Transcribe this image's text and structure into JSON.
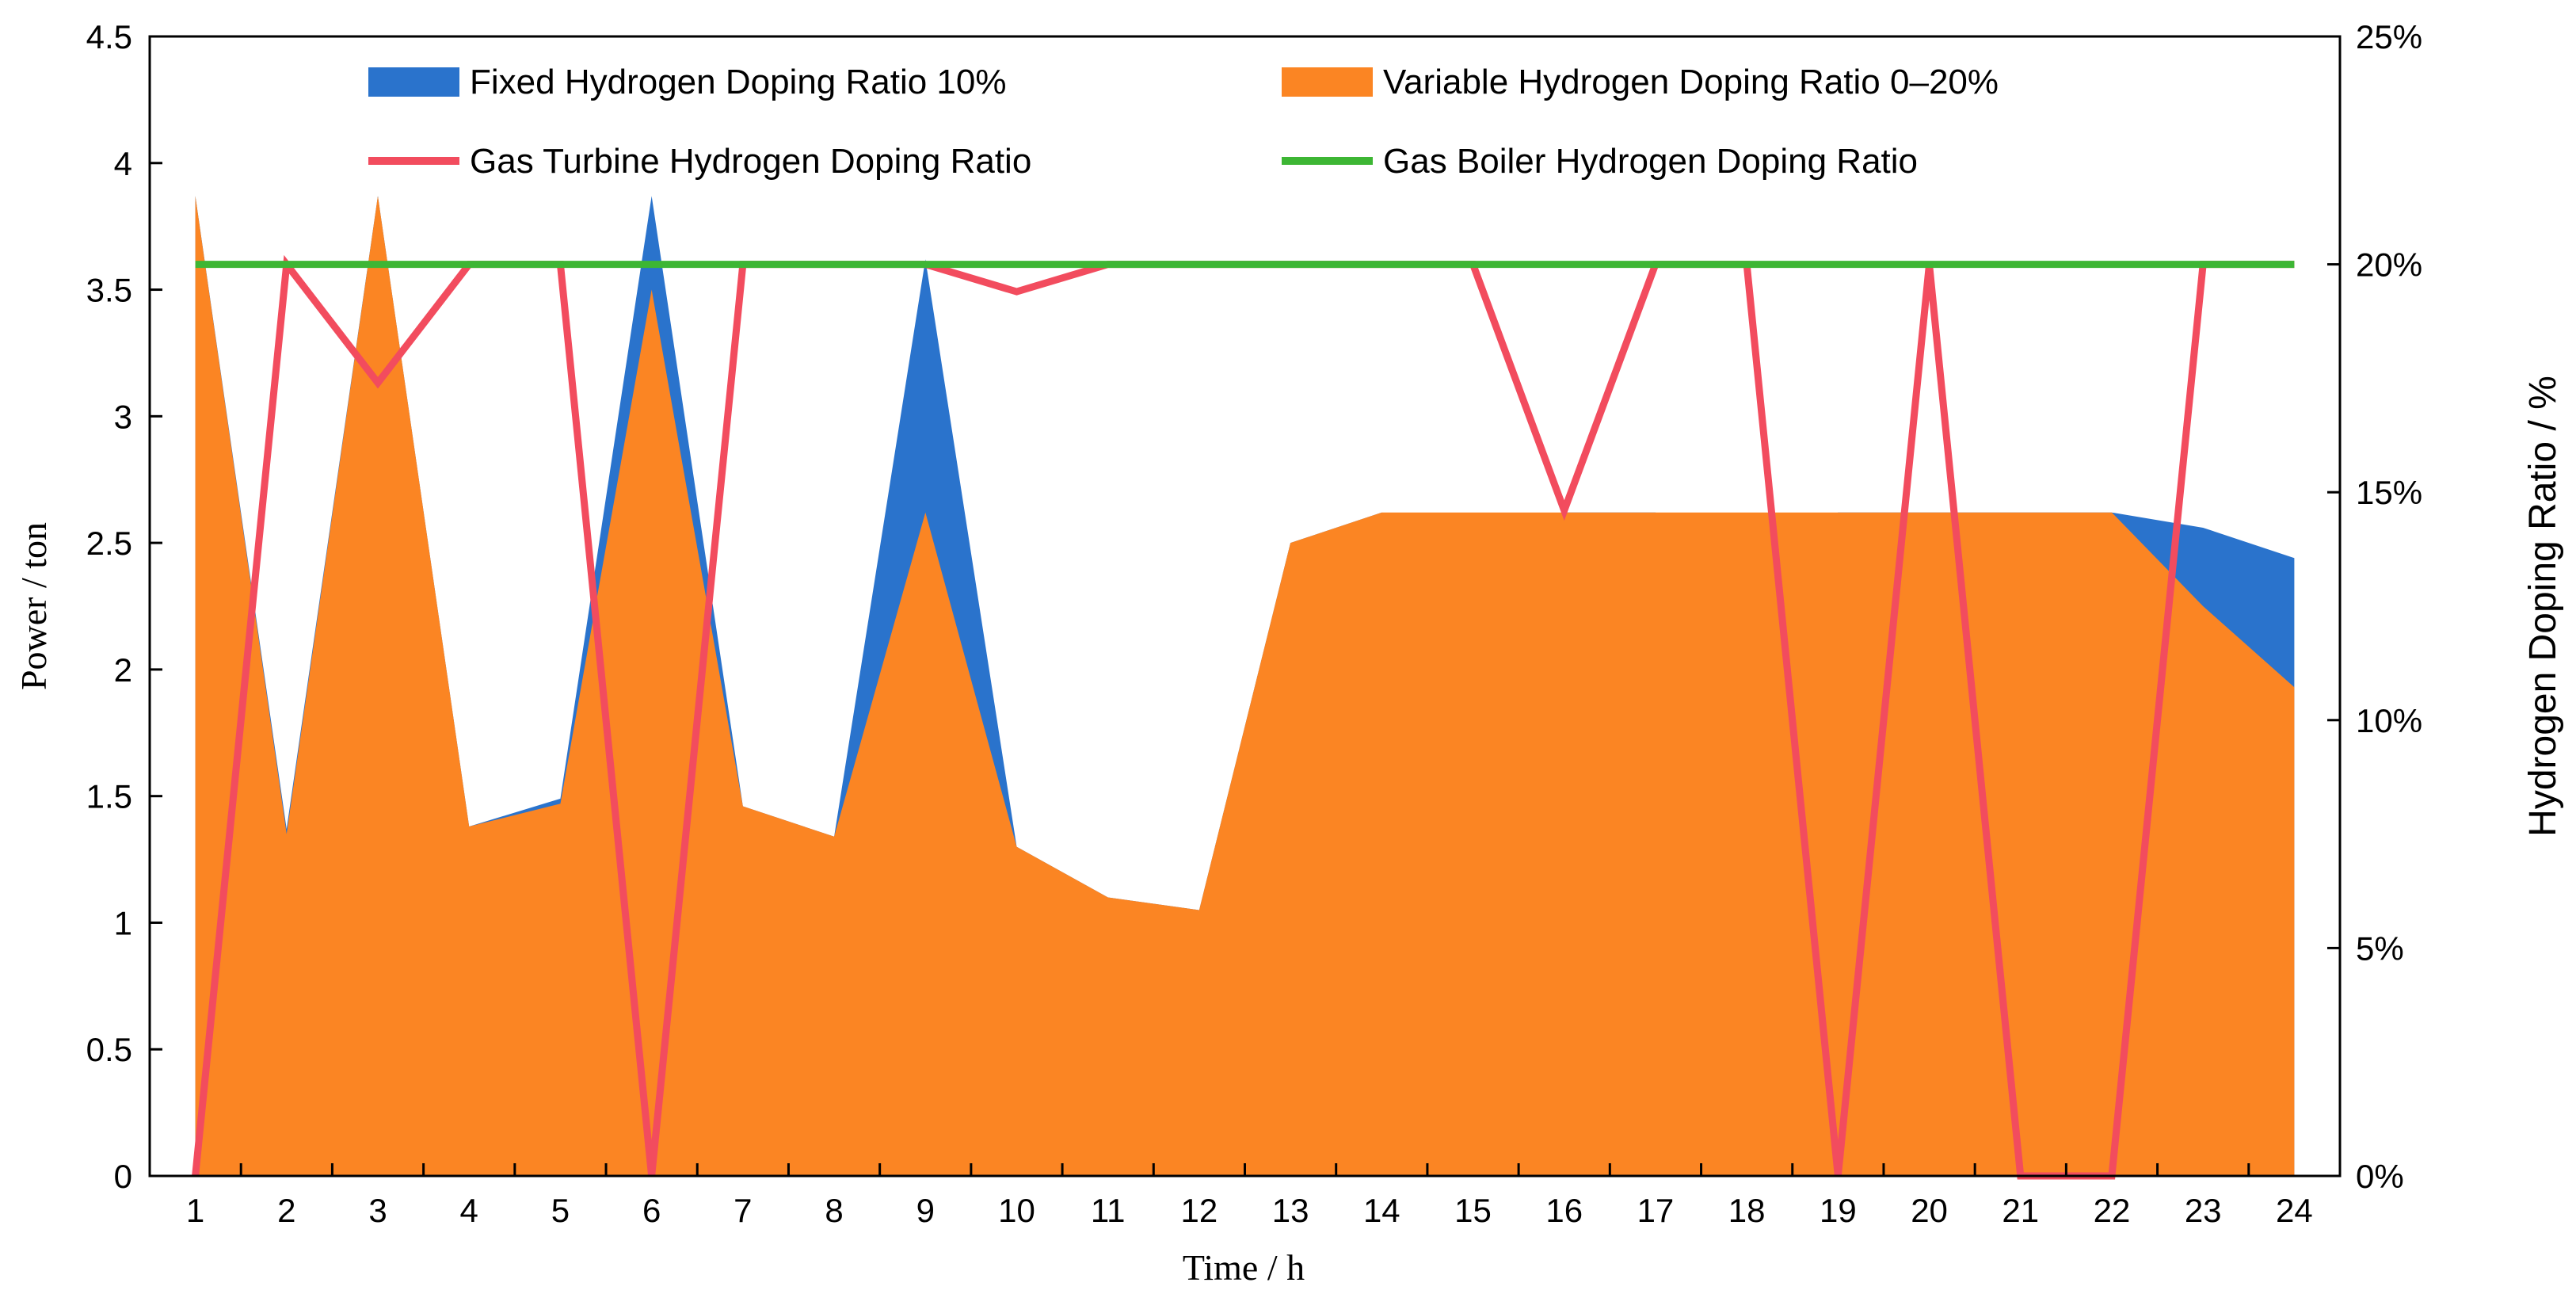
{
  "chart_data": {
    "type": "area",
    "title": "",
    "xlabel": "Time / h",
    "ylabel": "Power / ton",
    "y2label": "Hydrogen Doping Ratio / %",
    "x": [
      1,
      2,
      3,
      4,
      5,
      6,
      7,
      8,
      9,
      10,
      11,
      12,
      13,
      14,
      15,
      16,
      17,
      18,
      19,
      20,
      21,
      22,
      23,
      24
    ],
    "x_tick_labels": [
      "1",
      "2",
      "3",
      "4",
      "5",
      "6",
      "7",
      "8",
      "9",
      "10",
      "11",
      "12",
      "13",
      "14",
      "15",
      "16",
      "17",
      "18",
      "19",
      "20",
      "21",
      "22",
      "23",
      "24"
    ],
    "xlim": [
      0.5,
      24.5
    ],
    "ylim": [
      0,
      4.5
    ],
    "y_ticks": [
      0,
      0.5,
      1,
      1.5,
      2,
      2.5,
      3,
      3.5,
      4,
      4.5
    ],
    "y_tick_labels": [
      "0",
      "0.5",
      "1",
      "1.5",
      "2",
      "2.5",
      "3",
      "3.5",
      "4",
      "4.5"
    ],
    "y2lim": [
      0,
      25
    ],
    "y2_ticks": [
      0,
      5,
      10,
      15,
      20,
      25
    ],
    "y2_tick_labels": [
      "0%",
      "5%",
      "10%",
      "15%",
      "20%",
      "25%"
    ],
    "legend_position": "top",
    "series": [
      {
        "name": "Fixed Hydrogen Doping Ratio 10%",
        "kind": "area",
        "axis": "left",
        "color": "#2a73cc",
        "values": [
          3.87,
          1.37,
          3.87,
          1.38,
          1.49,
          3.87,
          1.46,
          1.34,
          3.62,
          1.3,
          1.1,
          1.05,
          2.5,
          2.62,
          1.4,
          2.62,
          2.62,
          2.43,
          2.62,
          2.62,
          2.62,
          2.62,
          2.56,
          2.44
        ]
      },
      {
        "name": "Variable Hydrogen Doping Ratio 0–20%",
        "kind": "area",
        "axis": "left",
        "color": "#fb8523",
        "values": [
          3.87,
          1.35,
          3.87,
          1.38,
          1.47,
          3.5,
          1.46,
          1.34,
          2.62,
          1.3,
          1.1,
          1.05,
          2.5,
          2.62,
          2.62,
          2.62,
          2.62,
          2.62,
          2.62,
          2.62,
          2.62,
          2.62,
          2.25,
          1.93
        ]
      },
      {
        "name": "Gas Turbine Hydrogen Doping Ratio",
        "kind": "line",
        "axis": "right",
        "color": "#f24c5e",
        "values": [
          0,
          20,
          17.4,
          20,
          20,
          0,
          20,
          20,
          20,
          19.4,
          20,
          20,
          20,
          20,
          20,
          14.6,
          20,
          20,
          0,
          20,
          0,
          0,
          20,
          20
        ]
      },
      {
        "name": "Gas Boiler Hydrogen Doping Ratio",
        "kind": "line",
        "axis": "right",
        "color": "#3db634",
        "values": [
          20,
          20,
          20,
          20,
          20,
          20,
          20,
          20,
          20,
          20,
          20,
          20,
          20,
          20,
          20,
          20,
          20,
          20,
          20,
          20,
          20,
          20,
          20,
          20
        ]
      }
    ]
  }
}
